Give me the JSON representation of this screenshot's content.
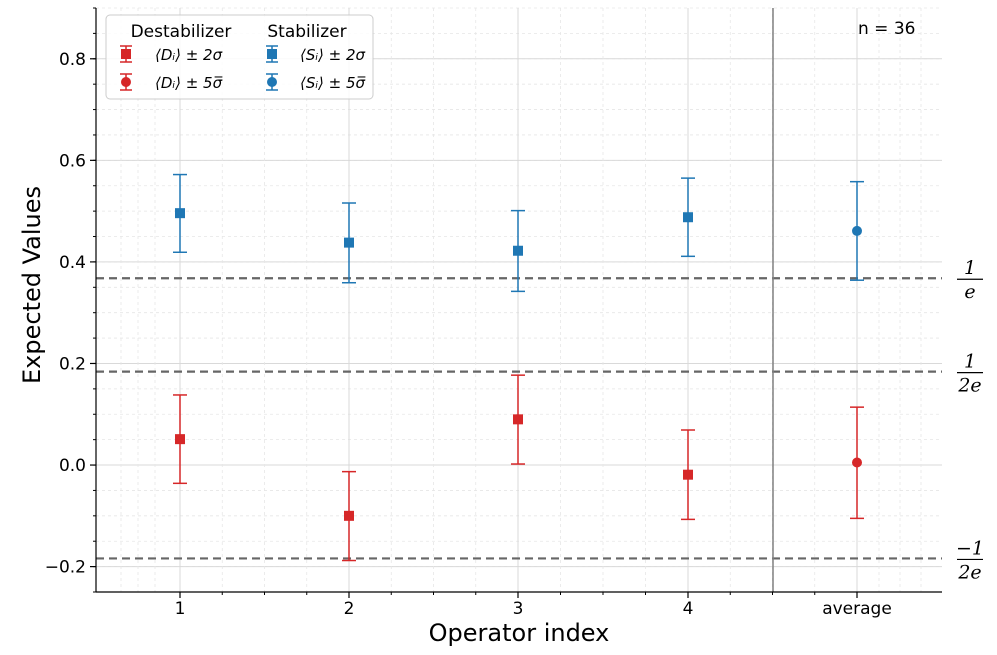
{
  "chart_data": {
    "type": "scatter",
    "xlabel": "Operator index",
    "ylabel": "Expected Values",
    "categories": [
      "1",
      "2",
      "3",
      "4",
      "average"
    ],
    "ylim": [
      -0.25,
      0.9
    ],
    "y_ticks": [
      -0.2,
      0.0,
      0.2,
      0.4,
      0.6,
      0.8
    ],
    "y_tick_labels": [
      "−0.2",
      "0.0",
      "0.2",
      "0.4",
      "0.6",
      "0.8"
    ],
    "grid": true,
    "annotation": "n = 36",
    "legend": {
      "placement": "top-left",
      "groups": [
        {
          "title": "Destabilizer",
          "entries": [
            "⟨Dᵢ⟩ ± 2σ",
            "⟨Dᵢ⟩ ± 5σ̅"
          ]
        },
        {
          "title": "Stabilizer",
          "entries": [
            "⟨Sᵢ⟩ ± 2σ",
            "⟨Sᵢ⟩ ± 5σ̅"
          ]
        }
      ]
    },
    "colors": {
      "destabilizer": "#d62728",
      "stabilizer": "#1f77b4",
      "reference": "#666666",
      "separator": "#808080"
    },
    "reference_lines": [
      {
        "value": 0.3679,
        "label_num": "1",
        "label_den": "e"
      },
      {
        "value": 0.1839,
        "label_num": "1",
        "label_den": "2e"
      },
      {
        "value": -0.1839,
        "label_num": "−1",
        "label_den": "2e"
      }
    ],
    "series": [
      {
        "group": "Destabilizer",
        "marker": "square",
        "x": [
          "1",
          "2",
          "3",
          "4"
        ],
        "values": [
          0.051,
          -0.1,
          0.09,
          -0.019
        ],
        "err_low": [
          -0.036,
          -0.188,
          0.002,
          -0.107
        ],
        "err_high": [
          0.138,
          -0.013,
          0.177,
          0.069
        ]
      },
      {
        "group": "Destabilizer",
        "marker": "circle",
        "x": [
          "average"
        ],
        "values": [
          0.005
        ],
        "err_low": [
          -0.105
        ],
        "err_high": [
          0.114
        ]
      },
      {
        "group": "Stabilizer",
        "marker": "square",
        "x": [
          "1",
          "2",
          "3",
          "4"
        ],
        "values": [
          0.496,
          0.438,
          0.422,
          0.488
        ],
        "err_low": [
          0.419,
          0.359,
          0.342,
          0.411
        ],
        "err_high": [
          0.572,
          0.516,
          0.501,
          0.565
        ]
      },
      {
        "group": "Stabilizer",
        "marker": "circle",
        "x": [
          "average"
        ],
        "values": [
          0.461
        ],
        "err_low": [
          0.364
        ],
        "err_high": [
          0.558
        ]
      }
    ]
  }
}
